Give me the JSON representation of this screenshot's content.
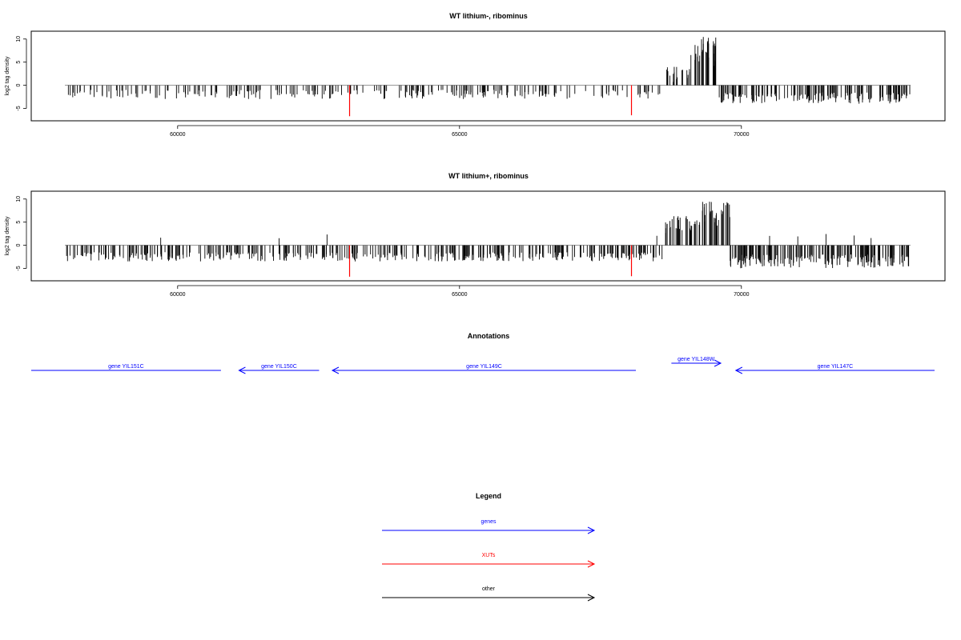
{
  "chart_data": [
    {
      "type": "bar",
      "title": "WT lithium-, ribominus",
      "xlabel": "",
      "ylabel": "log2 tag density",
      "xlim": [
        58000,
        73000
      ],
      "ylim": [
        -7,
        11
      ],
      "xticks": [
        60000,
        65000,
        70000
      ],
      "xtick_labels": [
        "60000",
        "65000",
        "70000"
      ],
      "yticks": [
        -5,
        0,
        5,
        10
      ],
      "ytick_labels": [
        "-5",
        "0",
        "5",
        "10"
      ],
      "colors": {
        "bars": "#000000",
        "highlight": "#ff0000",
        "baseline": "#888888"
      },
      "regions": [
        {
          "from": 58000,
          "to": 68600,
          "min": -3,
          "max": -1,
          "density": 0.35
        },
        {
          "from": 68650,
          "to": 68900,
          "min": 0.5,
          "max": 4.5,
          "density": 0.6
        },
        {
          "from": 68900,
          "to": 69100,
          "min": 1.5,
          "max": 3.5,
          "density": 0.5
        },
        {
          "from": 69100,
          "to": 69550,
          "min": 4,
          "max": 10.5,
          "density": 0.9
        },
        {
          "from": 69600,
          "to": 73000,
          "min": -4,
          "max": -1.5,
          "density": 0.7
        }
      ],
      "highlights": [
        {
          "x": 63050,
          "y": -6.7
        },
        {
          "x": 68050,
          "y": -6.5
        }
      ]
    },
    {
      "type": "bar",
      "title": "WT lithium+, ribominus",
      "xlabel": "",
      "ylabel": "log2 tag density",
      "xlim": [
        58000,
        73000
      ],
      "ylim": [
        -7,
        11
      ],
      "xticks": [
        60000,
        65000,
        70000
      ],
      "xtick_labels": [
        "60000",
        "65000",
        "70000"
      ],
      "yticks": [
        -5,
        0,
        5,
        10
      ],
      "ytick_labels": [
        "-5",
        "0",
        "5",
        "10"
      ],
      "colors": {
        "bars": "#000000",
        "highlight": "#ff0000",
        "baseline": "#888888"
      },
      "regions": [
        {
          "from": 58000,
          "to": 68600,
          "min": -3.5,
          "max": -1.5,
          "density": 0.55
        },
        {
          "from": 68650,
          "to": 69050,
          "min": 2,
          "max": 6.5,
          "density": 0.85
        },
        {
          "from": 69050,
          "to": 69300,
          "min": 2,
          "max": 6,
          "density": 0.8
        },
        {
          "from": 69300,
          "to": 69800,
          "min": 4,
          "max": 10,
          "density": 0.9
        },
        {
          "from": 69800,
          "to": 73000,
          "min": -5,
          "max": -2,
          "density": 0.85
        }
      ],
      "positive_spikes": [
        59700,
        61800,
        62650,
        68500,
        70500,
        71000,
        71500,
        72000,
        72300
      ],
      "highlights": [
        {
          "x": 63050,
          "y": -6.8
        },
        {
          "x": 68050,
          "y": -6.7
        }
      ]
    }
  ],
  "annotations": {
    "title": "Annotations",
    "genes": [
      {
        "label": "gene YIL151C",
        "from": 58000,
        "to": 61150,
        "direction": "left",
        "arrowhead": false,
        "row": "main"
      },
      {
        "label": "gene YIL150C",
        "from": 61450,
        "to": 62780,
        "direction": "left",
        "arrowhead": true,
        "row": "main"
      },
      {
        "label": "gene YIL149C",
        "from": 63000,
        "to": 68040,
        "direction": "left",
        "arrowhead": true,
        "row": "main"
      },
      {
        "label": "gene YIL148W",
        "from": 68630,
        "to": 69450,
        "direction": "right",
        "arrowhead": true,
        "row": "upper"
      },
      {
        "label": "gene YIL147C",
        "from": 69700,
        "to": 73000,
        "direction": "left",
        "arrowhead": true,
        "row": "main"
      }
    ],
    "color": "#0000ff"
  },
  "legend": {
    "title": "Legend",
    "items": [
      {
        "label": "genes",
        "color": "#0000ff"
      },
      {
        "label": "XUTs",
        "color": "#ff0000"
      },
      {
        "label": "other",
        "color": "#000000"
      }
    ]
  }
}
